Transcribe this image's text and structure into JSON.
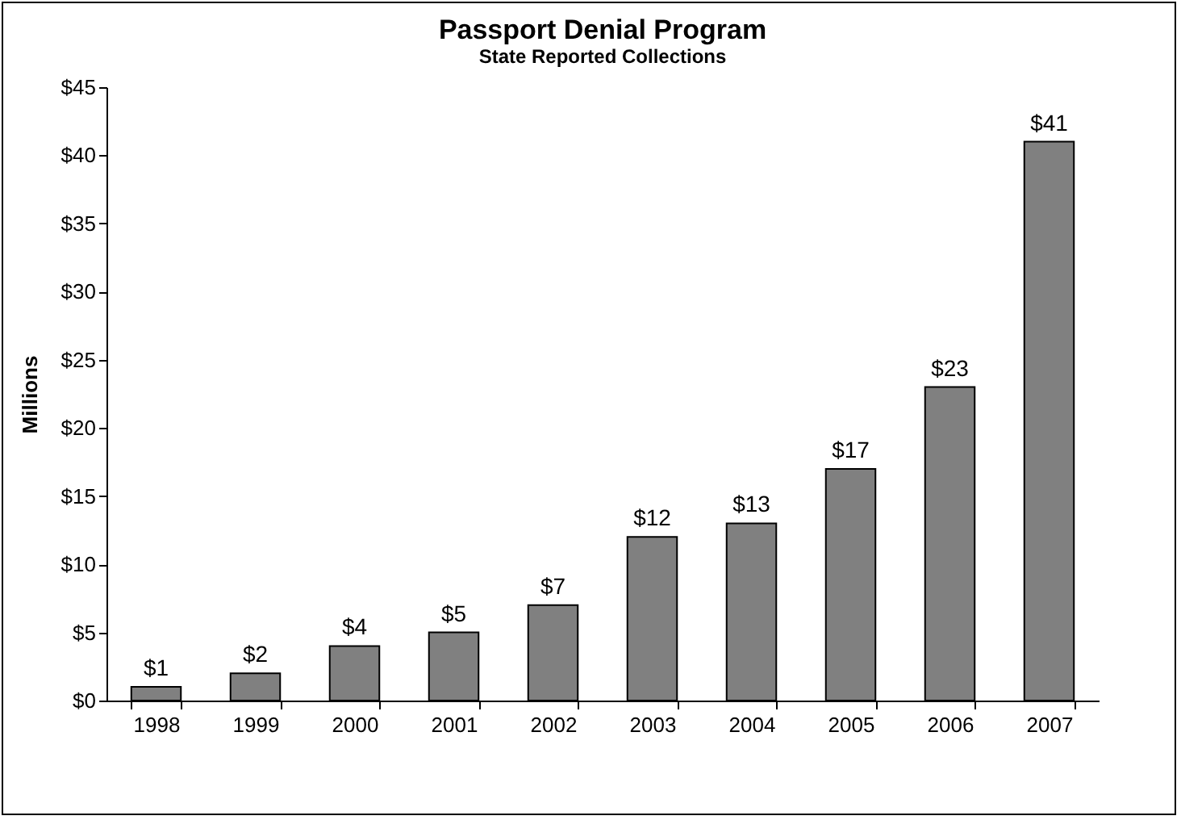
{
  "chart_data": {
    "type": "bar",
    "title": "Passport Denial Program",
    "subtitle": "State Reported Collections",
    "ylabel": "Millions",
    "categories": [
      "1998",
      "1999",
      "2000",
      "2001",
      "2002",
      "2003",
      "2004",
      "2005",
      "2006",
      "2007"
    ],
    "values": [
      1,
      2,
      4,
      5,
      7,
      12,
      13,
      17,
      23,
      41
    ],
    "value_labels": [
      "$1",
      "$2",
      "$4",
      "$5",
      "$7",
      "$12",
      "$13",
      "$17",
      "$23",
      "$41"
    ],
    "color": "#808080",
    "ylim": [
      0,
      45
    ],
    "yticks": [
      {
        "value": 0,
        "label": "$0"
      },
      {
        "value": 5,
        "label": "$5"
      },
      {
        "value": 10,
        "label": "$10"
      },
      {
        "value": 15,
        "label": "$15"
      },
      {
        "value": 20,
        "label": "$20"
      },
      {
        "value": 25,
        "label": "$25"
      },
      {
        "value": 30,
        "label": "$30"
      },
      {
        "value": 35,
        "label": "$35"
      },
      {
        "value": 40,
        "label": "$40"
      },
      {
        "value": 45,
        "label": "$45"
      }
    ],
    "grid": false
  }
}
